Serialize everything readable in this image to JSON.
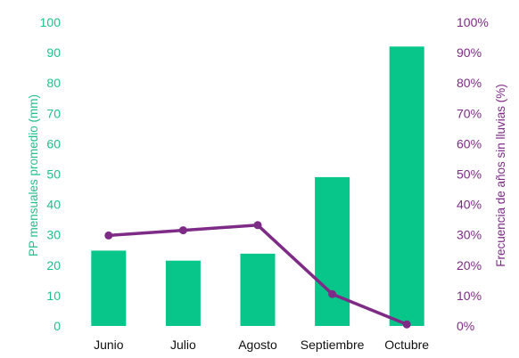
{
  "chart_data": {
    "type": "bar",
    "categories": [
      "Junio",
      "Julio",
      "Agosto",
      "Septiembre",
      "Octubre"
    ],
    "series": [
      {
        "type": "bar",
        "axis": "left",
        "values": [
          24.8,
          21.5,
          23.8,
          49.0,
          92.0
        ],
        "color": "#08c689"
      },
      {
        "type": "line",
        "axis": "right",
        "values": [
          29.8,
          31.5,
          33.2,
          10.5,
          0.5
        ],
        "color": "#7d2b86"
      }
    ],
    "ylabel": "PP mensuales promedio (mm)",
    "y2label": "Frecuencia de años sin lluvias (%)",
    "ylim": [
      0,
      100
    ],
    "y2lim": [
      0,
      100
    ],
    "yticks": [
      "0",
      "10",
      "20",
      "30",
      "40",
      "50",
      "60",
      "70",
      "80",
      "90",
      "100"
    ],
    "y2ticks": [
      "0%",
      "10%",
      "20%",
      "30%",
      "40%",
      "50%",
      "60%",
      "70%",
      "80%",
      "90%",
      "100%"
    ],
    "grid": false,
    "legend": "none"
  }
}
